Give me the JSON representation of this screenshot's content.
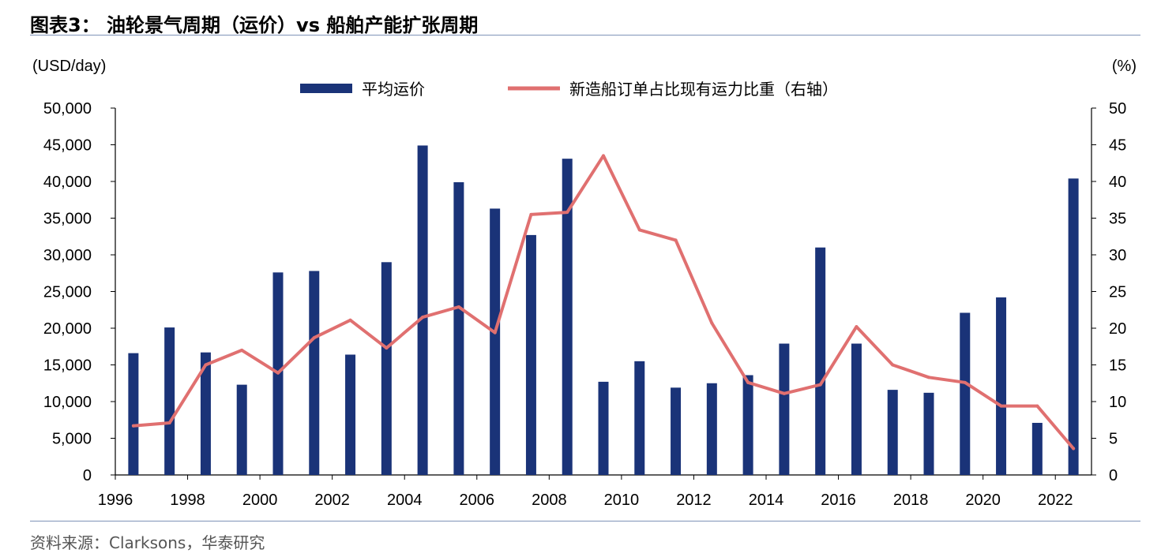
{
  "figure": {
    "title": "图表3： 油轮景气周期（运价）vs 船舶产能扩张周期",
    "source": "资料来源：Clarksons，华泰研究"
  },
  "colors": {
    "bar": "#1a3378",
    "line": "#e07070",
    "rule": "#7f93b8",
    "axis": "#000000"
  },
  "chart_data": {
    "type": "bar",
    "title": "油轮景气周期（运价）vs 船舶产能扩张周期",
    "left_axis_unit": "(USD/day)",
    "right_axis_unit": "(%)",
    "ylim": [
      0,
      50000
    ],
    "y2lim": [
      0,
      50
    ],
    "y_ticks": [
      "0",
      "5,000",
      "10,000",
      "15,000",
      "20,000",
      "25,000",
      "30,000",
      "35,000",
      "40,000",
      "45,000",
      "50,000"
    ],
    "y2_ticks": [
      "0",
      "5",
      "10",
      "15",
      "20",
      "25",
      "30",
      "35",
      "40",
      "45",
      "50"
    ],
    "x_tick_labels": [
      "1996",
      "1998",
      "2000",
      "2002",
      "2004",
      "2006",
      "2008",
      "2010",
      "2012",
      "2014",
      "2016",
      "2018",
      "2020",
      "2022"
    ],
    "categories": [
      "1996",
      "1997",
      "1998",
      "1999",
      "2000",
      "2001",
      "2002",
      "2003",
      "2004",
      "2005",
      "2006",
      "2007",
      "2008",
      "2009",
      "2010",
      "2011",
      "2012",
      "2013",
      "2014",
      "2015",
      "2016",
      "2017",
      "2018",
      "2019",
      "2020",
      "2021",
      "2022"
    ],
    "series": [
      {
        "name": "平均运价",
        "type": "bar",
        "axis": "left",
        "values": [
          16600,
          20100,
          16700,
          12300,
          27600,
          27800,
          16400,
          29000,
          44900,
          39900,
          36300,
          32700,
          43100,
          12700,
          15500,
          11900,
          12500,
          13600,
          17900,
          31000,
          17900,
          11600,
          11200,
          22100,
          24200,
          7100,
          40400
        ]
      },
      {
        "name": "新造船订单占比现有运力比重（右轴）",
        "type": "line",
        "axis": "right",
        "values": [
          6.7,
          7.1,
          15.0,
          17.0,
          13.9,
          18.7,
          21.1,
          17.3,
          21.5,
          22.9,
          19.4,
          35.5,
          35.8,
          43.5,
          33.4,
          32.0,
          20.7,
          12.6,
          11.1,
          12.3,
          20.2,
          15.0,
          13.3,
          12.6,
          9.4,
          9.4,
          3.6
        ]
      }
    ]
  }
}
